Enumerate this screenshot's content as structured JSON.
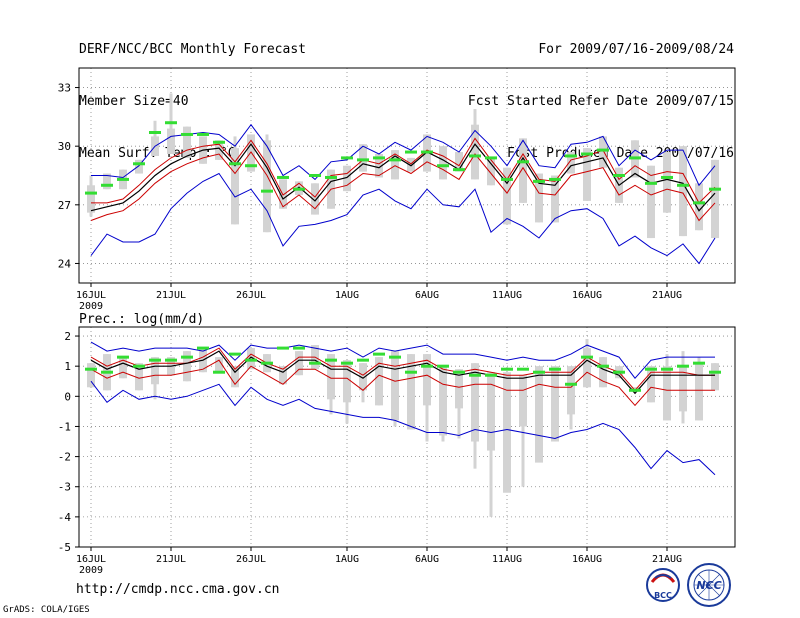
{
  "header": {
    "title": "DERF/NCC/BCC Monthly Forecast",
    "member_size": "Member Size=40",
    "period": "For 2009/07/16-2009/08/24",
    "fcst_started": "Fcst Started Refer Date 2009/07/15",
    "fcst_produced": "Fcst Produced Date 2009/07/16"
  },
  "footer": {
    "url": "http://cmdp.ncc.cma.gov.cn",
    "credit": "GrADS: COLA/IGES",
    "logo_bcc": "BCC",
    "logo_ncc": "NCC"
  },
  "colors": {
    "envelope": "#0000cc",
    "spread": "#cc0000",
    "mean": "#000000",
    "box": "#d3d3d3",
    "marker": "#33dd33"
  },
  "chart_data": [
    {
      "type": "line",
      "title": "Mean Surf. Temp.: °C",
      "ylim": [
        23,
        34
      ],
      "yticks": [
        24,
        27,
        30,
        33
      ],
      "xtick_labels": [
        "16JUL",
        "21JUL",
        "26JUL",
        "1AUG",
        "6AUG",
        "11AUG",
        "16AUG",
        "21AUG"
      ],
      "xtick_days": [
        1,
        6,
        11,
        17,
        22,
        27,
        32,
        37
      ],
      "year_label": "2009",
      "days": [
        1,
        2,
        3,
        4,
        5,
        6,
        7,
        8,
        9,
        10,
        11,
        12,
        13,
        14,
        15,
        16,
        17,
        18,
        19,
        20,
        21,
        22,
        23,
        24,
        25,
        26,
        27,
        28,
        29,
        30,
        31,
        32,
        33,
        34,
        35,
        36,
        37,
        38,
        39,
        40
      ],
      "series": [
        {
          "name": "max",
          "values": [
            28.5,
            28.5,
            28.4,
            29.0,
            30.0,
            30.5,
            30.6,
            30.7,
            30.6,
            30.0,
            31.1,
            30.0,
            28.5,
            29.0,
            28.3,
            29.2,
            29.3,
            30.0,
            29.6,
            30.2,
            29.8,
            30.5,
            30.2,
            29.7,
            30.8,
            30.0,
            29.0,
            30.3,
            29.0,
            28.9,
            30.1,
            30.2,
            30.5,
            29.0,
            29.8,
            29.3,
            29.8,
            29.8,
            28.0,
            29.0
          ]
        },
        {
          "name": "upper",
          "values": [
            27.1,
            27.1,
            27.3,
            28.0,
            28.8,
            29.4,
            29.8,
            30.0,
            30.1,
            29.2,
            30.3,
            29.1,
            27.5,
            28.1,
            27.4,
            28.5,
            28.6,
            29.3,
            29.1,
            29.6,
            29.1,
            29.8,
            29.5,
            29.0,
            30.4,
            29.3,
            28.3,
            29.6,
            28.3,
            28.2,
            29.3,
            29.5,
            29.8,
            28.3,
            29.0,
            28.5,
            28.7,
            28.6,
            27.1,
            27.9
          ]
        },
        {
          "name": "mean",
          "values": [
            26.7,
            26.9,
            27.1,
            27.7,
            28.5,
            29.1,
            29.5,
            29.8,
            29.9,
            29.0,
            30.1,
            28.9,
            27.3,
            27.9,
            27.2,
            28.2,
            28.4,
            29.1,
            28.9,
            29.5,
            29.0,
            29.7,
            29.3,
            28.8,
            30.1,
            29.1,
            28.1,
            29.4,
            28.1,
            28.0,
            29.0,
            29.2,
            29.4,
            28.0,
            28.6,
            28.1,
            28.3,
            28.1,
            26.7,
            27.6
          ]
        },
        {
          "name": "lower",
          "values": [
            26.2,
            26.5,
            26.7,
            27.3,
            28.1,
            28.7,
            29.1,
            29.4,
            29.6,
            28.6,
            29.7,
            28.5,
            26.9,
            27.5,
            26.8,
            27.8,
            28.0,
            28.6,
            28.5,
            29.0,
            28.6,
            29.2,
            28.8,
            28.3,
            29.6,
            28.6,
            27.6,
            28.9,
            27.6,
            27.5,
            28.5,
            28.7,
            28.9,
            27.5,
            28.0,
            27.5,
            27.8,
            27.6,
            26.2,
            27.1
          ]
        },
        {
          "name": "min",
          "values": [
            24.4,
            25.5,
            25.1,
            25.1,
            25.5,
            26.8,
            27.6,
            28.2,
            28.6,
            27.4,
            27.8,
            26.7,
            24.9,
            25.9,
            26.0,
            26.2,
            26.5,
            27.5,
            27.8,
            27.2,
            26.8,
            27.8,
            27.0,
            26.9,
            27.8,
            25.6,
            26.3,
            25.9,
            25.3,
            26.3,
            26.7,
            26.8,
            26.3,
            24.9,
            25.4,
            24.8,
            24.4,
            25.0,
            24.0,
            25.3
          ]
        },
        {
          "name": "box_high",
          "values": [
            28.0,
            28.6,
            28.8,
            29.3,
            30.5,
            30.9,
            31.0,
            30.5,
            30.3,
            29.9,
            30.6,
            30.3,
            28.3,
            28.2,
            28.1,
            28.8,
            29.0,
            30.1,
            29.6,
            29.8,
            29.4,
            30.6,
            30.0,
            29.7,
            31.1,
            29.4,
            28.9,
            30.4,
            28.6,
            28.5,
            29.7,
            29.9,
            30.5,
            28.9,
            30.3,
            29.0,
            29.7,
            30.0,
            28.1,
            29.3
          ]
        },
        {
          "name": "box_low",
          "values": [
            26.6,
            27.8,
            27.8,
            28.6,
            29.5,
            29.6,
            29.4,
            29.1,
            29.3,
            26.0,
            28.7,
            25.6,
            26.8,
            27.5,
            26.5,
            26.8,
            27.7,
            28.7,
            28.4,
            28.3,
            28.7,
            28.7,
            28.3,
            28.7,
            28.3,
            28.0,
            26.0,
            27.1,
            26.1,
            26.1,
            28.6,
            27.2,
            28.9,
            27.1,
            28.4,
            25.3,
            26.6,
            25.4,
            25.7,
            25.3
          ]
        },
        {
          "name": "whisker_high",
          "values": [
            28.5,
            28.6,
            28.8,
            29.3,
            31.3,
            32.7,
            31.0,
            30.5,
            30.3,
            30.5,
            30.6,
            30.6,
            28.3,
            28.2,
            28.1,
            28.8,
            29.0,
            30.1,
            29.6,
            29.8,
            29.4,
            30.6,
            30.0,
            29.7,
            31.9,
            29.4,
            28.9,
            30.4,
            28.6,
            28.5,
            29.7,
            29.9,
            30.5,
            28.9,
            30.3,
            29.0,
            29.7,
            30.0,
            28.1,
            29.3
          ]
        },
        {
          "name": "whisker_low",
          "values": [
            26.4,
            27.8,
            27.8,
            28.6,
            29.5,
            29.6,
            29.4,
            29.1,
            29.3,
            26.0,
            28.7,
            25.6,
            26.8,
            27.5,
            26.5,
            26.8,
            27.7,
            28.7,
            28.4,
            28.3,
            28.7,
            28.7,
            28.3,
            28.7,
            28.3,
            28.0,
            26.0,
            27.1,
            26.1,
            26.1,
            28.6,
            27.2,
            28.9,
            27.1,
            28.4,
            25.3,
            26.6,
            25.4,
            25.7,
            25.3
          ]
        },
        {
          "name": "marker",
          "values": [
            27.6,
            28.0,
            28.3,
            29.1,
            30.7,
            31.2,
            30.6,
            30.6,
            30.2,
            29.1,
            29.0,
            27.7,
            28.4,
            27.8,
            28.5,
            28.4,
            29.4,
            29.3,
            29.4,
            29.3,
            29.7,
            29.7,
            29.0,
            28.8,
            29.5,
            29.4,
            28.3,
            29.2,
            28.2,
            28.3,
            29.5,
            29.6,
            29.8,
            28.5,
            29.4,
            28.1,
            28.4,
            28.0,
            27.1,
            27.8
          ]
        }
      ]
    },
    {
      "type": "line",
      "title": "Prec.: log(mm/d)",
      "ylim": [
        -5,
        2.3
      ],
      "yticks": [
        -5,
        -4,
        -3,
        -2,
        -1,
        0,
        1,
        2
      ],
      "xtick_labels": [
        "16JUL",
        "21JUL",
        "26JUL",
        "1AUG",
        "6AUG",
        "11AUG",
        "16AUG",
        "21AUG"
      ],
      "xtick_days": [
        1,
        6,
        11,
        17,
        22,
        27,
        32,
        37
      ],
      "year_label": "2009",
      "days": [
        1,
        2,
        3,
        4,
        5,
        6,
        7,
        8,
        9,
        10,
        11,
        12,
        13,
        14,
        15,
        16,
        17,
        18,
        19,
        20,
        21,
        22,
        23,
        24,
        25,
        26,
        27,
        28,
        29,
        30,
        31,
        32,
        33,
        34,
        35,
        36,
        37,
        38,
        39,
        40
      ],
      "series": [
        {
          "name": "max",
          "values": [
            1.8,
            1.5,
            1.6,
            1.5,
            1.6,
            1.6,
            1.6,
            1.5,
            1.7,
            1.2,
            1.7,
            1.6,
            1.6,
            1.7,
            1.6,
            1.5,
            1.6,
            1.3,
            1.6,
            1.5,
            1.6,
            1.7,
            1.4,
            1.4,
            1.4,
            1.3,
            1.2,
            1.3,
            1.2,
            1.2,
            1.4,
            1.7,
            1.5,
            1.3,
            0.6,
            1.2,
            1.3,
            1.3,
            1.3,
            1.3
          ]
        },
        {
          "name": "upper",
          "values": [
            1.3,
            1.0,
            1.2,
            1.0,
            1.1,
            1.1,
            1.1,
            1.3,
            1.6,
            0.9,
            1.4,
            1.1,
            0.9,
            1.3,
            1.3,
            1.0,
            1.0,
            0.7,
            1.1,
            1.0,
            1.1,
            1.2,
            0.9,
            0.8,
            0.9,
            0.8,
            0.7,
            0.7,
            0.8,
            0.8,
            0.8,
            1.3,
            1.0,
            0.8,
            0.2,
            0.8,
            0.8,
            0.8,
            0.7,
            0.7
          ]
        },
        {
          "name": "mean",
          "values": [
            1.2,
            0.9,
            1.1,
            0.9,
            1.0,
            1.0,
            1.1,
            1.2,
            1.5,
            0.8,
            1.3,
            1.0,
            0.8,
            1.2,
            1.2,
            0.9,
            0.9,
            0.6,
            1.0,
            0.9,
            1.0,
            1.1,
            0.8,
            0.7,
            0.8,
            0.7,
            0.6,
            0.6,
            0.7,
            0.7,
            0.7,
            1.2,
            0.9,
            0.7,
            0.1,
            0.7,
            0.7,
            0.7,
            0.7,
            0.7
          ]
        },
        {
          "name": "lower",
          "values": [
            0.9,
            0.6,
            0.8,
            0.6,
            0.7,
            0.7,
            0.8,
            0.9,
            1.2,
            0.4,
            1.0,
            0.7,
            0.4,
            0.9,
            0.9,
            0.6,
            0.6,
            0.2,
            0.7,
            0.5,
            0.6,
            0.7,
            0.4,
            0.3,
            0.4,
            0.4,
            0.2,
            0.2,
            0.4,
            0.3,
            0.3,
            0.8,
            0.5,
            0.3,
            -0.3,
            0.3,
            0.2,
            0.2,
            0.2,
            0.2
          ]
        },
        {
          "name": "min",
          "values": [
            0.5,
            -0.2,
            0.2,
            -0.1,
            0.0,
            -0.1,
            0.0,
            0.2,
            0.4,
            -0.3,
            0.3,
            -0.1,
            -0.3,
            -0.1,
            -0.4,
            -0.5,
            -0.6,
            -0.7,
            -0.7,
            -0.8,
            -1.0,
            -1.2,
            -1.2,
            -1.3,
            -1.1,
            -1.2,
            -1.1,
            -1.2,
            -1.3,
            -1.4,
            -1.2,
            -1.1,
            -0.9,
            -1.1,
            -1.7,
            -2.4,
            -1.8,
            -2.2,
            -2.1,
            -2.6
          ]
        },
        {
          "name": "box_high",
          "values": [
            1.1,
            1.4,
            1.3,
            1.1,
            1.3,
            1.3,
            1.5,
            1.6,
            1.3,
            1.0,
            1.6,
            1.4,
            1.0,
            1.5,
            1.7,
            1.4,
            1.2,
            1.1,
            1.3,
            1.5,
            1.4,
            1.4,
            1.0,
            0.9,
            1.1,
            0.8,
            0.8,
            0.7,
            1.0,
            1.0,
            1.0,
            1.6,
            1.3,
            1.0,
            0.3,
            1.0,
            1.0,
            1.0,
            1.1,
            1.1
          ]
        },
        {
          "name": "box_low",
          "values": [
            0.3,
            0.2,
            0.6,
            0.2,
            0.4,
            0.7,
            0.5,
            0.8,
            0.8,
            0.3,
            0.9,
            0.8,
            0.4,
            0.7,
            0.9,
            -0.1,
            -0.2,
            0.2,
            -0.3,
            -0.8,
            -1.1,
            -0.3,
            -1.3,
            -0.4,
            -1.5,
            -1.8,
            -3.2,
            -1.0,
            -2.2,
            -1.5,
            -0.6,
            0.3,
            0.3,
            0.6,
            0.2,
            -0.2,
            -0.8,
            -0.5,
            -0.8,
            0.2
          ]
        },
        {
          "name": "whisker_high",
          "values": [
            1.1,
            1.4,
            1.3,
            1.1,
            1.3,
            1.3,
            1.5,
            1.6,
            1.3,
            1.0,
            1.6,
            1.4,
            1.0,
            1.5,
            1.7,
            1.4,
            1.2,
            1.1,
            1.3,
            1.5,
            1.4,
            1.4,
            1.0,
            0.9,
            1.1,
            0.8,
            0.8,
            0.7,
            1.0,
            1.0,
            1.0,
            1.9,
            1.3,
            1.0,
            0.3,
            1.0,
            1.4,
            1.5,
            1.3,
            1.1
          ]
        },
        {
          "name": "whisker_low",
          "values": [
            0.3,
            0.2,
            0.6,
            0.2,
            -0.1,
            0.7,
            0.5,
            0.8,
            0.8,
            0.3,
            0.9,
            0.8,
            0.4,
            0.7,
            0.9,
            -0.6,
            -0.9,
            -0.2,
            -0.3,
            -1.0,
            -1.1,
            -1.5,
            -1.5,
            -1.4,
            -2.4,
            -4.0,
            -1.4,
            -3.0,
            -1.4,
            -1.5,
            -1.1,
            0.3,
            0.3,
            0.6,
            0.2,
            -0.2,
            -0.8,
            -0.9,
            -0.8,
            0.2
          ]
        },
        {
          "name": "marker",
          "values": [
            0.9,
            0.8,
            1.3,
            1.0,
            1.2,
            1.2,
            1.3,
            1.6,
            0.8,
            1.4,
            1.2,
            1.1,
            1.6,
            1.6,
            1.1,
            1.2,
            1.1,
            1.2,
            1.4,
            1.3,
            0.8,
            1.0,
            1.0,
            0.8,
            0.7,
            0.7,
            0.9,
            0.9,
            0.8,
            0.9,
            0.4,
            1.3,
            1.0,
            0.8,
            0.2,
            0.9,
            0.9,
            1.0,
            1.1,
            0.8
          ]
        }
      ]
    }
  ]
}
